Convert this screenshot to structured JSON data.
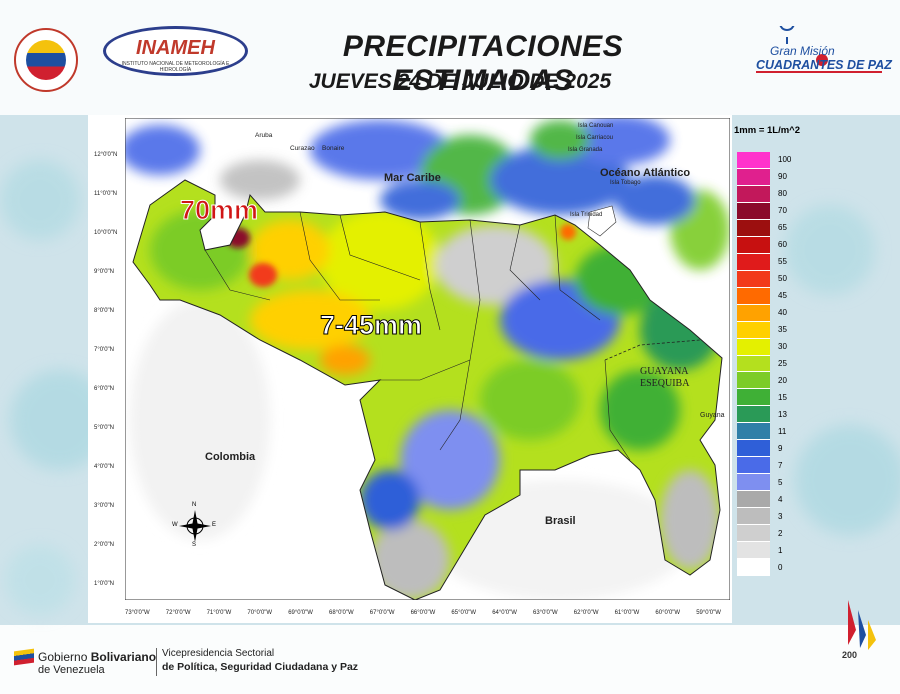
{
  "header": {
    "title": "PRECIPITACIONES ESTIMADAS",
    "date": "JUEVES 24 DE JULIO DE 2025",
    "left_logo_icon": "venezuela-shield-emblem-icon",
    "inameh_logo": "INAMEH",
    "inameh_subtitle": "INSTITUTO NACIONAL DE METEOROLOGÍA E HIDROLOGÍA",
    "right_logo_line1": "Gran Misión",
    "right_logo_line2": "CUADRANTES DE PAZ"
  },
  "map": {
    "max_label": "70mm",
    "range_label": "7-45mm",
    "places": {
      "mar_caribe": "Mar Caribe",
      "oceano": "Océano Atlántico",
      "colombia": "Colombia",
      "brasil": "Brasil",
      "guayana_1": "GUAYANA",
      "guayana_2": "ESEQUIBA",
      "guyana": "Guyana",
      "aruba": "Aruba",
      "curazao": "Curazao",
      "bonaire": "Bonaire",
      "canouan": "Isla Canouan",
      "carriacou": "Isla Carriacou",
      "granada": "Isla Granada",
      "tobago": "Isla Tobago",
      "trinidad": "Isla Trinidad"
    },
    "lat_labels": [
      "12°0'0\"N",
      "11°0'0\"N",
      "10°0'0\"N",
      "9°0'0\"N",
      "8°0'0\"N",
      "7°0'0\"N",
      "6°0'0\"N",
      "5°0'0\"N",
      "4°0'0\"N",
      "3°0'0\"N",
      "2°0'0\"N",
      "1°0'0\"N"
    ],
    "lon_labels": [
      "73°0'0\"W",
      "72°0'0\"W",
      "71°0'0\"W",
      "70°0'0\"W",
      "69°0'0\"W",
      "68°0'0\"W",
      "67°0'0\"W",
      "66°0'0\"W",
      "65°0'0\"W",
      "64°0'0\"W",
      "63°0'0\"W",
      "62°0'0\"W",
      "61°0'0\"W",
      "60°0'0\"W",
      "59°0'0\"W"
    ],
    "compass": {
      "n": "N",
      "s": "S",
      "e": "E",
      "w": "W"
    }
  },
  "legend": {
    "unit": "1mm = 1L/m^2",
    "levels": [
      {
        "label": "100",
        "color": "#ff33cc"
      },
      {
        "label": "90",
        "color": "#e0208e"
      },
      {
        "label": "80",
        "color": "#c2185b"
      },
      {
        "label": "70",
        "color": "#8b0a2a"
      },
      {
        "label": "65",
        "color": "#9c0f0f"
      },
      {
        "label": "60",
        "color": "#c71010"
      },
      {
        "label": "55",
        "color": "#e01b1b"
      },
      {
        "label": "50",
        "color": "#f23a1a"
      },
      {
        "label": "45",
        "color": "#ff6a00"
      },
      {
        "label": "40",
        "color": "#ffa200"
      },
      {
        "label": "35",
        "color": "#ffd000"
      },
      {
        "label": "30",
        "color": "#e4f000"
      },
      {
        "label": "25",
        "color": "#b4e01e"
      },
      {
        "label": "20",
        "color": "#7ccc28"
      },
      {
        "label": "15",
        "color": "#3fb036"
      },
      {
        "label": "13",
        "color": "#2a9a57"
      },
      {
        "label": "11",
        "color": "#2f7fa8"
      },
      {
        "label": "9",
        "color": "#2f5fd8"
      },
      {
        "label": "7",
        "color": "#4a6be8"
      },
      {
        "label": "5",
        "color": "#7e8ff0"
      },
      {
        "label": "4",
        "color": "#a9a9a9"
      },
      {
        "label": "3",
        "color": "#bdbdbd"
      },
      {
        "label": "2",
        "color": "#cfcfcf"
      },
      {
        "label": "1",
        "color": "#e3e3e3"
      },
      {
        "label": "0",
        "color": "#ffffff"
      }
    ]
  },
  "footer": {
    "gob_1a": "Gobierno ",
    "gob_1b": "Bolivariano",
    "gob_2": "de Venezuela",
    "vice_1": "Vicepresidencia Sectorial",
    "vice_2": "de Política, Seguridad Ciudadana y Paz",
    "bicentenario": "200",
    "bicentenario_icon": "bicentenario-ayacucho-emblem-icon"
  }
}
